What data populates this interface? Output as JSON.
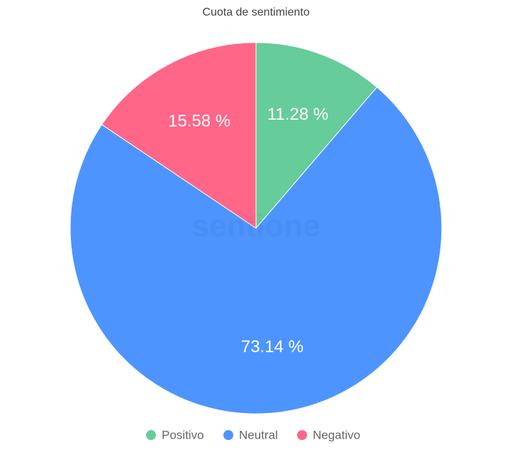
{
  "chart_data": {
    "type": "pie",
    "title": "Cuota de sentimiento",
    "watermark": "sentione",
    "categories": [
      "Positivo",
      "Neutral",
      "Negativo"
    ],
    "values": [
      11.28,
      73.14,
      15.58
    ],
    "value_labels": [
      "11.28 %",
      "73.14 %",
      "15.58 %"
    ],
    "colors": [
      "#66cc99",
      "#4d94ff",
      "#ff6688"
    ],
    "legend": "bottom"
  }
}
